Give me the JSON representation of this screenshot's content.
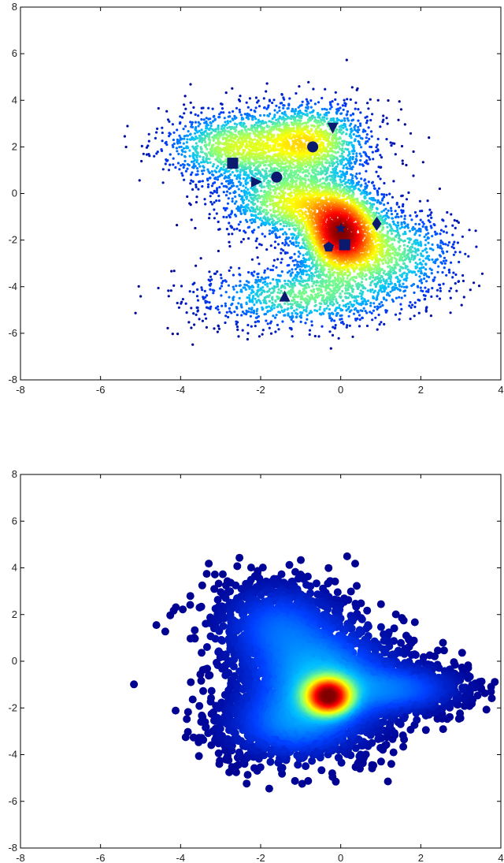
{
  "chart_data": [
    {
      "type": "scatter",
      "title": "",
      "xlabel": "",
      "ylabel": "",
      "xlim": [
        -8,
        4
      ],
      "ylim": [
        -8,
        8
      ],
      "xticks": [
        "-8",
        "-6",
        "-4",
        "-2",
        "0",
        "2",
        "4"
      ],
      "yticks": [
        "8",
        "6",
        "4",
        "2",
        "0",
        "-2",
        "-4",
        "-6",
        "-8"
      ],
      "colormap": [
        "#00008f",
        "#0040ff",
        "#00c0ff",
        "#80ff80",
        "#ffff00",
        "#ff8000",
        "#ff0000",
        "#800000"
      ],
      "density_clusters": [
        {
          "x": 0.0,
          "y": -1.7,
          "sx": 0.55,
          "sy": 1.0,
          "weight": 1.0
        },
        {
          "x": -0.8,
          "y": 2.2,
          "sx": 0.8,
          "sy": 0.9,
          "weight": 0.55
        },
        {
          "x": -2.7,
          "y": 2.0,
          "sx": 0.9,
          "sy": 0.8,
          "weight": 0.45
        },
        {
          "x": -1.2,
          "y": -0.4,
          "sx": 0.9,
          "sy": 0.8,
          "weight": 0.5
        },
        {
          "x": -1.0,
          "y": -4.4,
          "sx": 1.3,
          "sy": 0.7,
          "weight": 0.35
        },
        {
          "x": 1.2,
          "y": -2.6,
          "sx": 0.9,
          "sy": 1.0,
          "weight": 0.35
        }
      ],
      "markers": [
        {
          "shape": "triangle-down",
          "x": -0.2,
          "y": 2.8
        },
        {
          "shape": "circle",
          "x": -0.7,
          "y": 2.0
        },
        {
          "shape": "square",
          "x": -2.7,
          "y": 1.3
        },
        {
          "shape": "circle",
          "x": -1.6,
          "y": 0.7
        },
        {
          "shape": "triangle-right",
          "x": -2.1,
          "y": 0.5
        },
        {
          "shape": "diamond",
          "x": 0.9,
          "y": -1.3
        },
        {
          "shape": "star",
          "x": 0.0,
          "y": -1.5
        },
        {
          "shape": "square",
          "x": 0.1,
          "y": -2.2
        },
        {
          "shape": "pentagon",
          "x": -0.3,
          "y": -2.3
        },
        {
          "shape": "triangle-up",
          "x": -1.4,
          "y": -4.4
        }
      ]
    },
    {
      "type": "scatter",
      "title": "",
      "xlabel": "",
      "ylabel": "",
      "xlim": [
        -8,
        4
      ],
      "ylim": [
        -8,
        8
      ],
      "xticks": [
        "-8",
        "-6",
        "-4",
        "-2",
        "0",
        "2",
        "4"
      ],
      "yticks": [
        "8",
        "6",
        "4",
        "2",
        "0",
        "-2",
        "-4",
        "-6",
        "-8"
      ],
      "colormap": [
        "#00008f",
        "#0040ff",
        "#00c0ff",
        "#80ff80",
        "#ffff00",
        "#ff8000",
        "#ff0000",
        "#800000"
      ],
      "density_clusters": [
        {
          "x": -0.3,
          "y": -1.5,
          "sx": 0.35,
          "sy": 0.45,
          "weight": 1.0
        },
        {
          "x": -0.5,
          "y": -0.8,
          "sx": 1.1,
          "sy": 1.4,
          "weight": 0.45
        },
        {
          "x": -1.6,
          "y": 1.6,
          "sx": 0.9,
          "sy": 1.1,
          "weight": 0.25
        },
        {
          "x": -1.3,
          "y": -2.8,
          "sx": 1.0,
          "sy": 0.9,
          "weight": 0.25
        },
        {
          "x": 1.6,
          "y": -1.2,
          "sx": 0.9,
          "sy": 0.6,
          "weight": 0.25
        }
      ]
    }
  ]
}
